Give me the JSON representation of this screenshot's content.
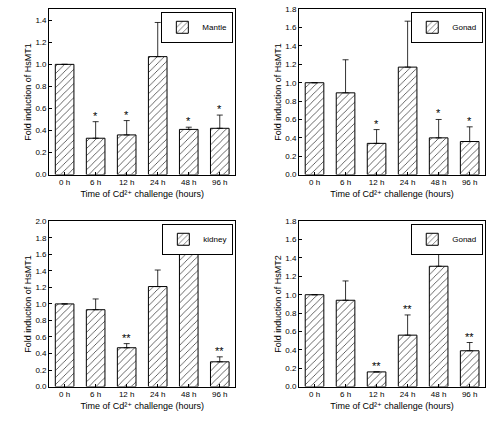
{
  "chart_data": [
    {
      "type": "bar",
      "legend": "top right",
      "grid": false,
      "xlabel": "Time of Cd²⁺ challenge (hours)",
      "ylabel": "Fold induction of HsMT1",
      "categories": [
        "0 h",
        "6 h",
        "12 h",
        "24 h",
        "48 h",
        "96 h"
      ],
      "ylim": [
        0,
        1.5
      ],
      "yticks": [
        {
          "value": 0,
          "label": "0.0"
        },
        {
          "value": 0.2,
          "label": "0.2"
        },
        {
          "value": 0.4,
          "label": "0.4"
        },
        {
          "value": 0.6,
          "label": "0.6"
        },
        {
          "value": 0.8,
          "label": "0.8"
        },
        {
          "value": 1,
          "label": "1.0"
        },
        {
          "value": 1.2,
          "label": "1.2"
        },
        {
          "value": 1.4,
          "label": "1.4"
        }
      ],
      "series": [
        {
          "name": "Mantle",
          "color": "#000000",
          "values": [
            1.0,
            0.33,
            0.36,
            1.07,
            0.41,
            0.42
          ],
          "errors": [
            0,
            0.15,
            0.13,
            0.31,
            0.02,
            0.12
          ],
          "significance": [
            null,
            "*",
            "*",
            null,
            "*",
            "*"
          ]
        }
      ]
    },
    {
      "type": "bar",
      "legend": "top right",
      "grid": false,
      "xlabel": "Time of Cd²⁺ challenge (hours)",
      "ylabel": "Fold induction of HsMT1",
      "categories": [
        "0 h",
        "6 h",
        "12 h",
        "24 h",
        "48 h",
        "96 h"
      ],
      "ylim": [
        0,
        1.8
      ],
      "yticks": [
        {
          "value": 0,
          "label": "0.0"
        },
        {
          "value": 0.2,
          "label": "0.2"
        },
        {
          "value": 0.4,
          "label": "0.4"
        },
        {
          "value": 0.6,
          "label": "0.6"
        },
        {
          "value": 0.8,
          "label": "0.8"
        },
        {
          "value": 1,
          "label": "1.0"
        },
        {
          "value": 1.2,
          "label": "1.2"
        },
        {
          "value": 1.4,
          "label": "1.4"
        },
        {
          "value": 1.6,
          "label": "1.6"
        },
        {
          "value": 1.8,
          "label": "1.8"
        }
      ],
      "series": [
        {
          "name": "Gonad",
          "color": "#000000",
          "values": [
            1.0,
            0.89,
            0.34,
            1.17,
            0.4,
            0.36
          ],
          "errors": [
            0,
            0.36,
            0.15,
            0.5,
            0.2,
            0.16
          ],
          "significance": [
            null,
            null,
            "*",
            null,
            "*",
            "*"
          ]
        }
      ]
    },
    {
      "type": "bar",
      "legend": "top right",
      "grid": false,
      "xlabel": "Time of Cd²⁺ challenge (hours)",
      "ylabel": "Fold induction of HsMT1",
      "categories": [
        "0 h",
        "6 h",
        "12 h",
        "24 h",
        "48 h",
        "96 h"
      ],
      "ylim": [
        0,
        2.0
      ],
      "yticks": [
        {
          "value": 0,
          "label": "0.0"
        },
        {
          "value": 0.2,
          "label": "0.2"
        },
        {
          "value": 0.4,
          "label": "0.4"
        },
        {
          "value": 0.6,
          "label": "0.6"
        },
        {
          "value": 0.8,
          "label": "0.8"
        },
        {
          "value": 1,
          "label": "1.0"
        },
        {
          "value": 1.2,
          "label": "1.2"
        },
        {
          "value": 1.4,
          "label": "1.4"
        },
        {
          "value": 1.6,
          "label": "1.6"
        },
        {
          "value": 1.8,
          "label": "1.8"
        },
        {
          "value": 2,
          "label": "2.0"
        }
      ],
      "series": [
        {
          "name": "kidney",
          "color": "#000000",
          "values": [
            1.0,
            0.93,
            0.47,
            1.21,
            1.6,
            0.3
          ],
          "errors": [
            0,
            0.13,
            0.05,
            0.2,
            0.35,
            0.06
          ],
          "significance": [
            null,
            null,
            "**",
            null,
            null,
            "**"
          ]
        }
      ]
    },
    {
      "type": "bar",
      "legend": "top right",
      "grid": false,
      "xlabel": "Time of Cd²⁺ challenge (hours)",
      "ylabel": "Fold induction of HsMT2",
      "categories": [
        "0 h",
        "6 h",
        "12 h",
        "24 h",
        "48 h",
        "96 h"
      ],
      "ylim": [
        0,
        1.8
      ],
      "yticks": [
        {
          "value": 0,
          "label": "0.0"
        },
        {
          "value": 0.2,
          "label": "0.2"
        },
        {
          "value": 0.4,
          "label": "0.4"
        },
        {
          "value": 0.6,
          "label": "0.6"
        },
        {
          "value": 0.8,
          "label": "0.8"
        },
        {
          "value": 1,
          "label": "1.0"
        },
        {
          "value": 1.2,
          "label": "1.2"
        },
        {
          "value": 1.4,
          "label": "1.4"
        },
        {
          "value": 1.6,
          "label": "1.6"
        },
        {
          "value": 1.8,
          "label": "1.8"
        }
      ],
      "series": [
        {
          "name": "Gonad",
          "color": "#000000",
          "values": [
            1.0,
            0.94,
            0.16,
            0.56,
            1.31,
            0.39
          ],
          "errors": [
            0,
            0.21,
            0.0,
            0.22,
            0.34,
            0.09
          ],
          "significance": [
            null,
            null,
            "**",
            "**",
            null,
            "**"
          ]
        }
      ]
    }
  ]
}
